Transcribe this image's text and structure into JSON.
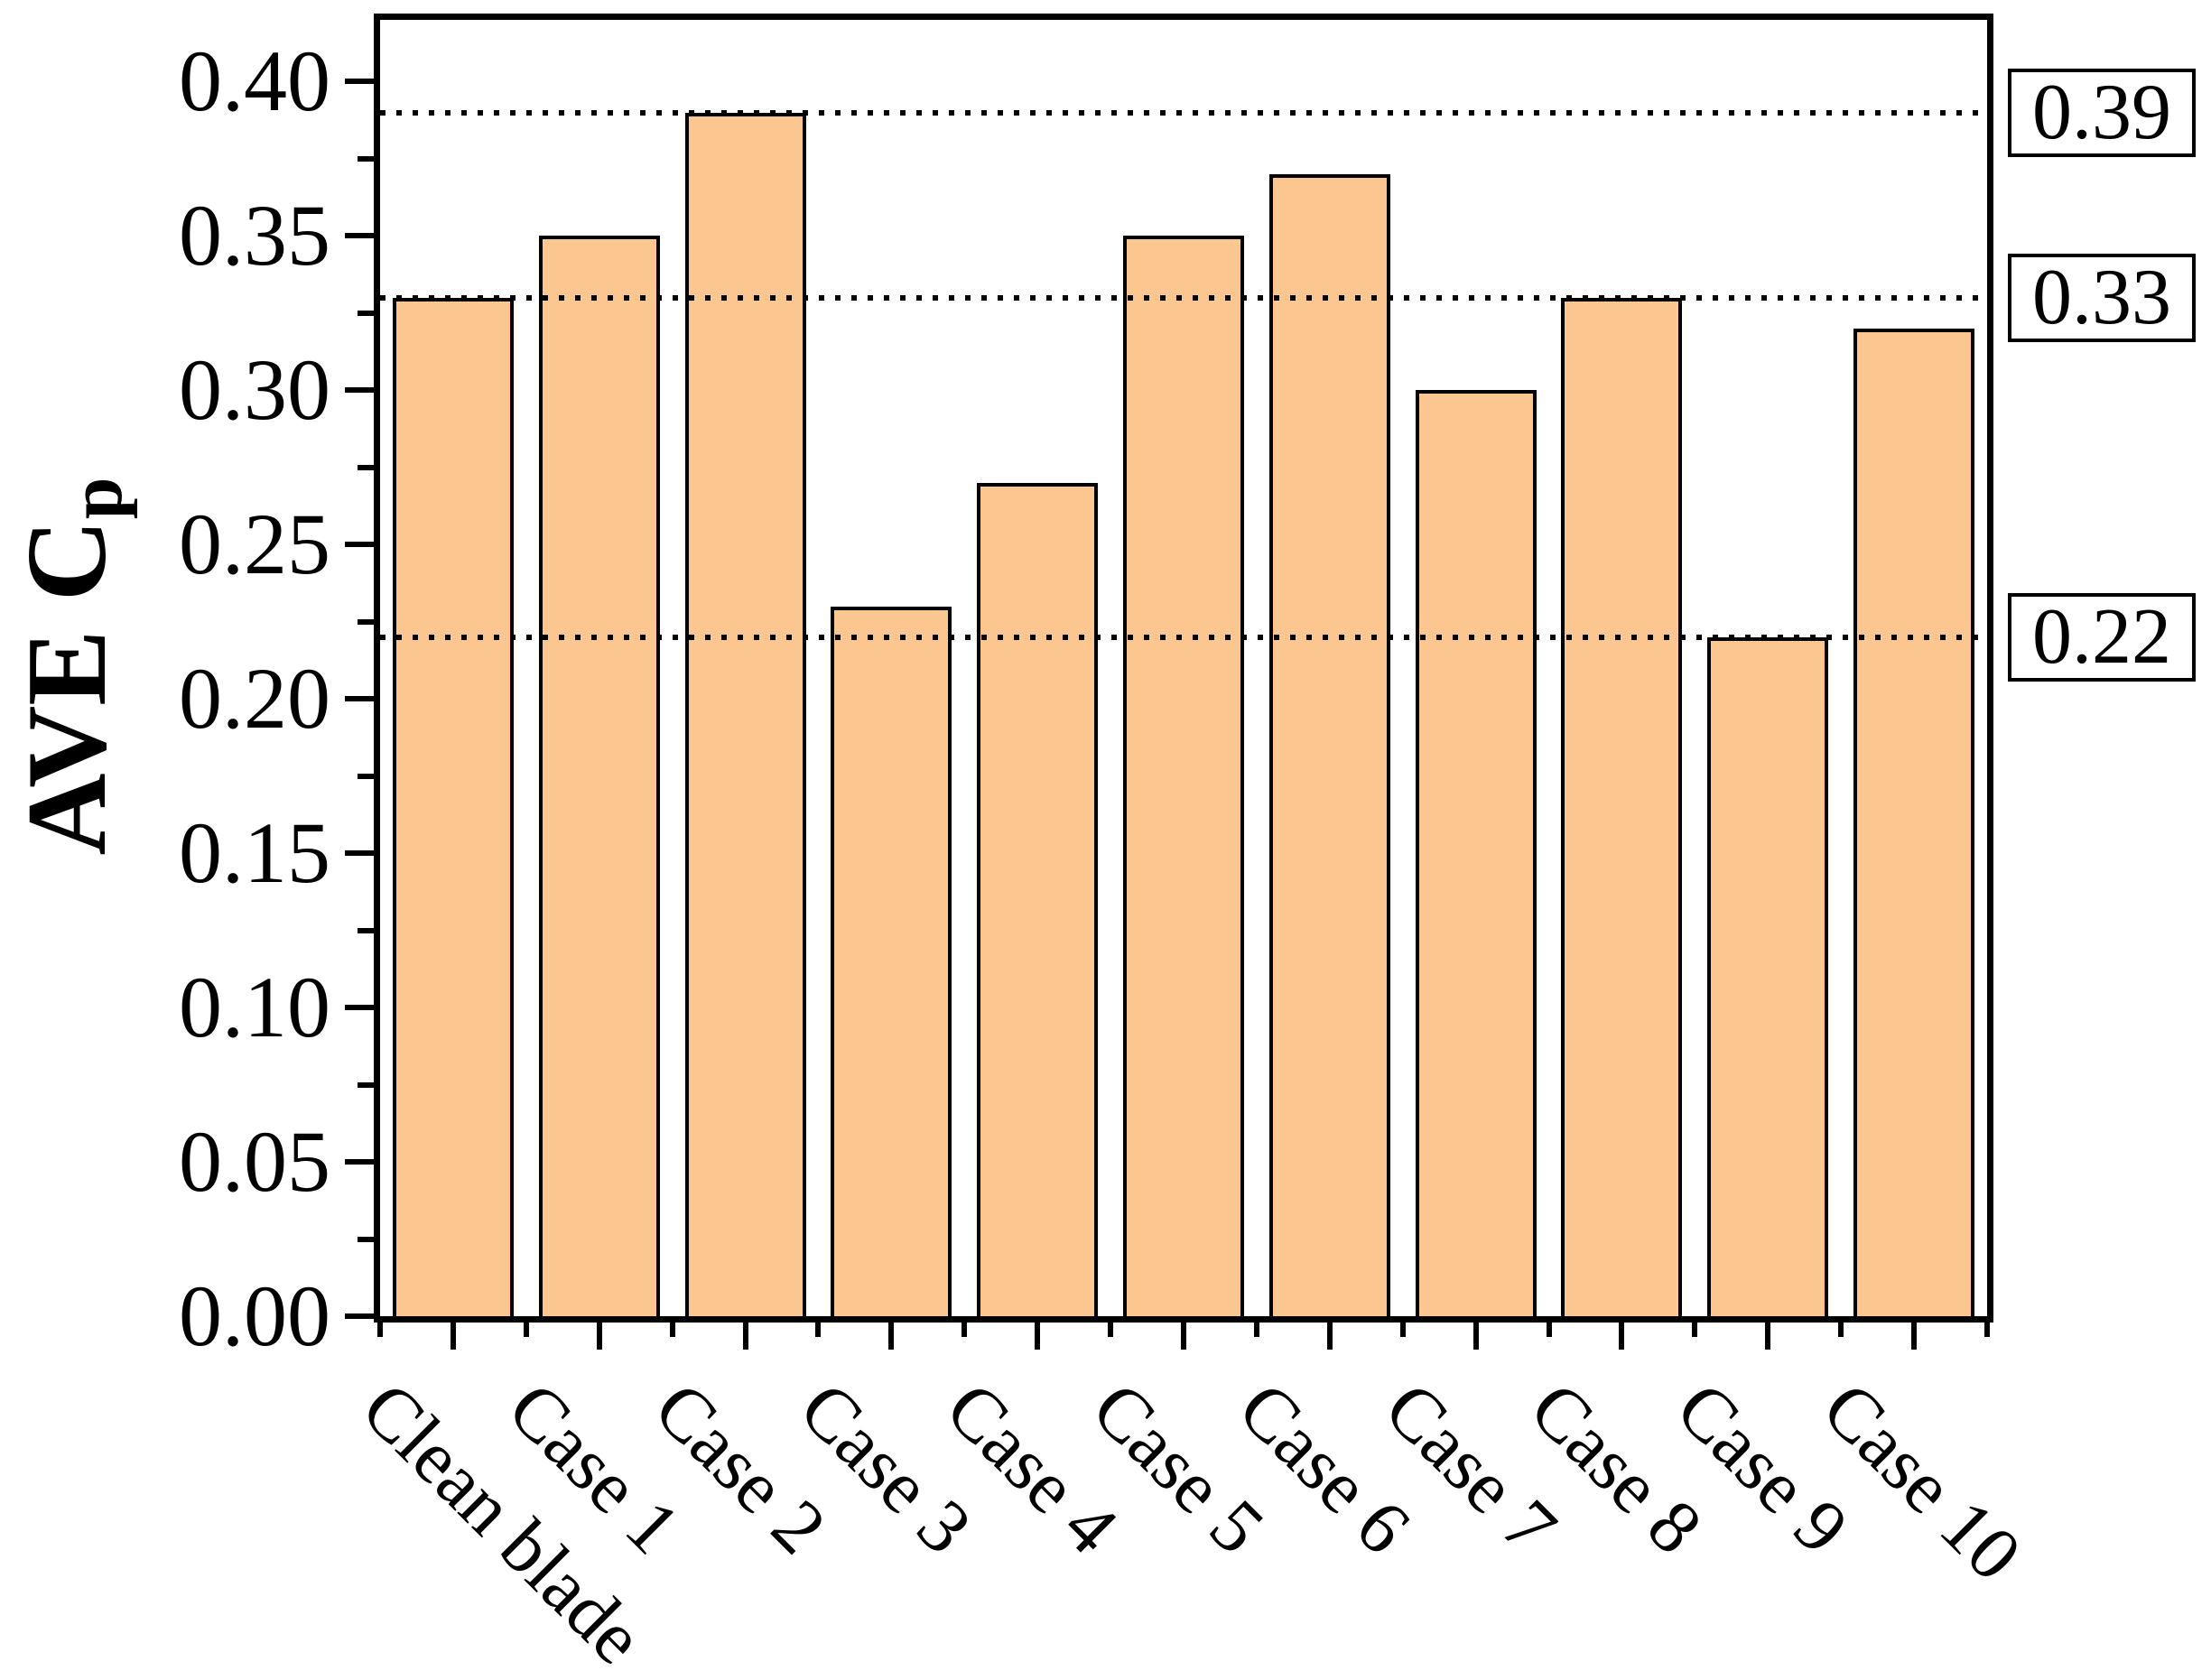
{
  "axes": {
    "y_label_main": "AVE C",
    "y_label_sub": "p"
  },
  "chart_data": {
    "type": "bar",
    "title": "",
    "xlabel": "",
    "ylabel": "AVE C_p",
    "categories": [
      "Clean blade",
      "Case 1",
      "Case 2",
      "Case 3",
      "Case 4",
      "Case 5",
      "Case 6",
      "Case 7",
      "Case 8",
      "Case 9",
      "Case 10"
    ],
    "values": [
      0.33,
      0.35,
      0.39,
      0.23,
      0.27,
      0.35,
      0.37,
      0.3,
      0.33,
      0.22,
      0.32
    ],
    "ylim": [
      0,
      0.42
    ],
    "yticks": [
      0.0,
      0.05,
      0.1,
      0.15,
      0.2,
      0.25,
      0.3,
      0.35,
      0.4
    ],
    "ytick_labels": [
      "0.00",
      "0.05",
      "0.10",
      "0.15",
      "0.20",
      "0.25",
      "0.30",
      "0.35",
      "0.40"
    ],
    "y_minor_ticks": [
      0.025,
      0.075,
      0.125,
      0.175,
      0.225,
      0.275,
      0.325,
      0.375
    ],
    "reference_lines": [
      {
        "value": 0.39,
        "label": "0.39"
      },
      {
        "value": 0.33,
        "label": "0.33"
      },
      {
        "value": 0.22,
        "label": "0.22"
      }
    ],
    "colors": {
      "bar_fill": "#FBC690",
      "bar_edge": "#000000",
      "axis": "#000000",
      "background": "#FFFFFF"
    },
    "grid": "off",
    "legend": "none",
    "x_tick_rotation_deg": 45
  }
}
